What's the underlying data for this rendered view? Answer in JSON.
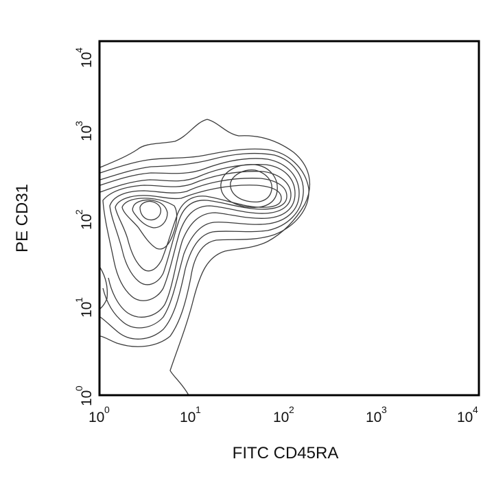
{
  "chart_data": {
    "type": "contour",
    "xlabel": "FITC CD45RA",
    "ylabel": "PE CD31",
    "x_scale": "log",
    "y_scale": "log",
    "xlim": [
      1,
      10000
    ],
    "ylim": [
      1,
      10000
    ],
    "grid": false,
    "x_ticks": [
      {
        "base": "10",
        "exp": "0"
      },
      {
        "base": "10",
        "exp": "1"
      },
      {
        "base": "10",
        "exp": "2"
      },
      {
        "base": "10",
        "exp": "3"
      },
      {
        "base": "10",
        "exp": "4"
      }
    ],
    "y_ticks": [
      {
        "base": "10",
        "exp": "0"
      },
      {
        "base": "10",
        "exp": "1"
      },
      {
        "base": "10",
        "exp": "2"
      },
      {
        "base": "10",
        "exp": "3"
      },
      {
        "base": "10",
        "exp": "4"
      }
    ],
    "populations": [
      {
        "center_x": 3.5,
        "center_y": 120
      },
      {
        "center_x": 40,
        "center_y": 200
      }
    ],
    "contour_line_color": "#3a3a3a",
    "frame_color": "#000000"
  }
}
